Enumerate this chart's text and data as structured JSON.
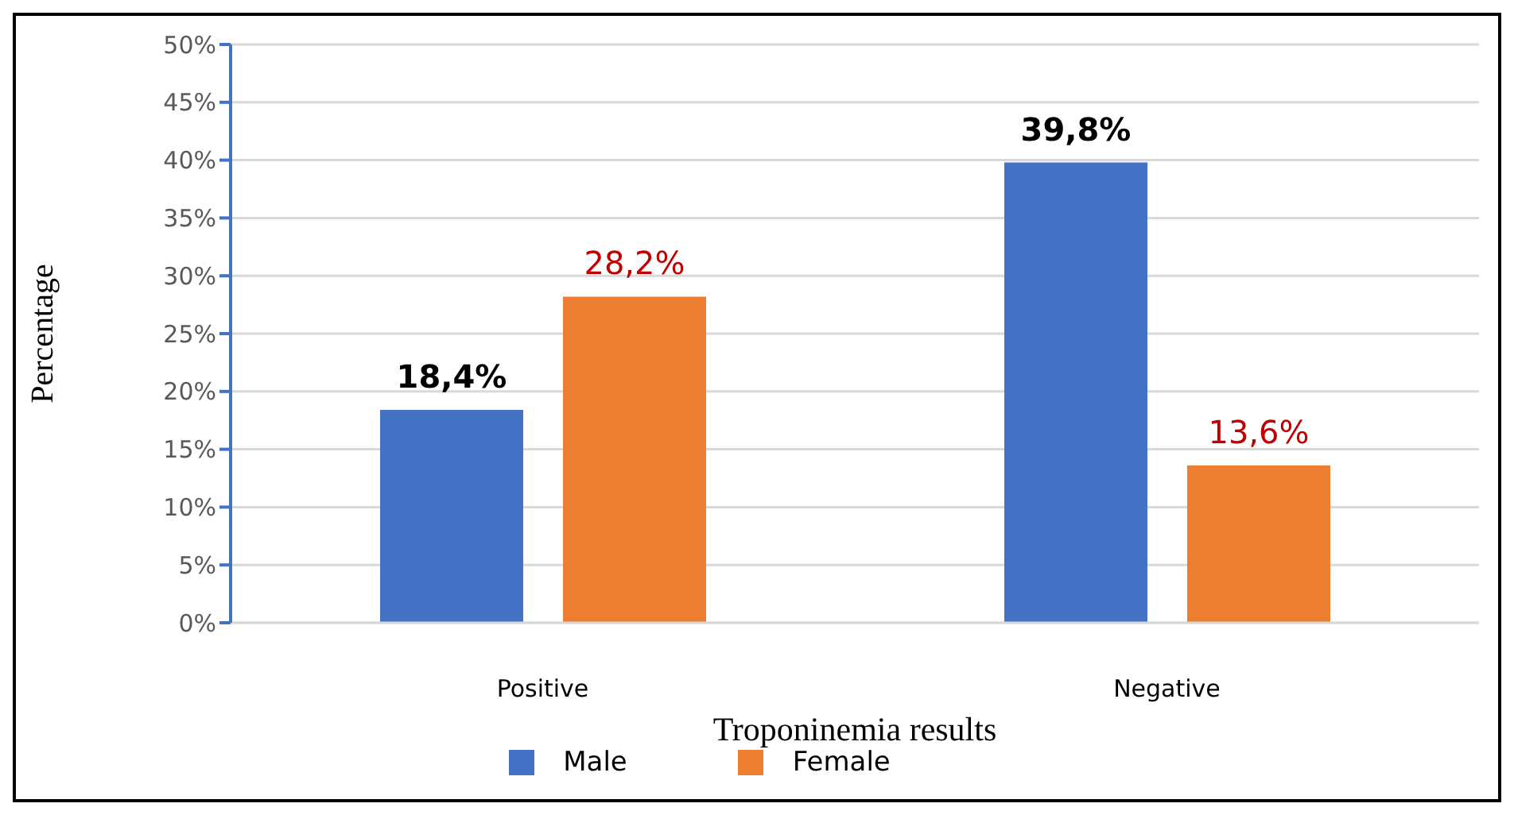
{
  "chart_data": {
    "type": "bar",
    "xlabel": "Troponinemia results",
    "ylabel": "Percentage",
    "categories": [
      "Positive",
      "Negative"
    ],
    "series": [
      {
        "name": "Male",
        "color": "#4472c4",
        "values": [
          18.4,
          39.8
        ],
        "value_labels": [
          "18,4%",
          "39,8%"
        ]
      },
      {
        "name": "Female",
        "color": "#ed7d31",
        "values": [
          28.2,
          13.6
        ],
        "value_labels": [
          "28,2%",
          "13,6%"
        ]
      }
    ],
    "ylim": [
      0,
      50
    ],
    "yticks": [
      {
        "value": 0,
        "label": "0%"
      },
      {
        "value": 5,
        "label": "5%"
      },
      {
        "value": 10,
        "label": "10%"
      },
      {
        "value": 15,
        "label": "15%"
      },
      {
        "value": 20,
        "label": "20%"
      },
      {
        "value": 25,
        "label": "25%"
      },
      {
        "value": 30,
        "label": "30%"
      },
      {
        "value": 35,
        "label": "35%"
      },
      {
        "value": 40,
        "label": "40%"
      },
      {
        "value": 45,
        "label": "45%"
      },
      {
        "value": 50,
        "label": "50%"
      }
    ],
    "grid": "y",
    "legend": "bottom"
  }
}
